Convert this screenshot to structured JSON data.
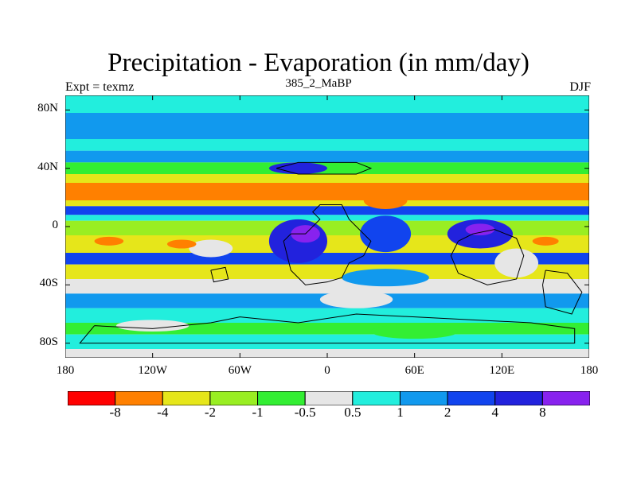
{
  "title": "Precipitation - Evaporation (in mm/day)",
  "left_label": "Expt = texmz",
  "center_label": "385_2_MaBP",
  "right_label": "DJF",
  "y_ticks": [
    {
      "label": "80N",
      "lat": 80
    },
    {
      "label": "40N",
      "lat": 40
    },
    {
      "label": "0",
      "lat": 0
    },
    {
      "label": "40S",
      "lat": -40
    },
    {
      "label": "80S",
      "lat": -80
    }
  ],
  "x_ticks": [
    {
      "label": "180",
      "lon": -180
    },
    {
      "label": "120W",
      "lon": -120
    },
    {
      "label": "60W",
      "lon": -60
    },
    {
      "label": "0",
      "lon": 0
    },
    {
      "label": "60E",
      "lon": 60
    },
    {
      "label": "120E",
      "lon": 120
    },
    {
      "label": "180",
      "lon": 180
    }
  ],
  "colorbar": {
    "colors": [
      "#ff0000",
      "#ff8000",
      "#e6e61a",
      "#99ee22",
      "#33ee33",
      "#e6e6e6",
      "#22eedd",
      "#1199ee",
      "#1144ee",
      "#2222dd",
      "#8822ee"
    ],
    "labels": [
      "-8",
      "-4",
      "-2",
      "-1",
      "-0.5",
      "0.5",
      "1",
      "2",
      "4",
      "8"
    ]
  },
  "map": {
    "lat_range": [
      -90,
      90
    ],
    "lon_range": [
      -180,
      180
    ],
    "bands": [
      {
        "lat_top": 90,
        "lat_bot": 78,
        "color": "#22eedd"
      },
      {
        "lat_top": 78,
        "lat_bot": 60,
        "color": "#1199ee"
      },
      {
        "lat_top": 60,
        "lat_bot": 52,
        "color": "#22eedd"
      },
      {
        "lat_top": 52,
        "lat_bot": 44,
        "color": "#1199ee"
      },
      {
        "lat_top": 44,
        "lat_bot": 36,
        "color": "#33ee33"
      },
      {
        "lat_top": 36,
        "lat_bot": 30,
        "color": "#e6e61a"
      },
      {
        "lat_top": 30,
        "lat_bot": 18,
        "color": "#ff8000"
      },
      {
        "lat_top": 18,
        "lat_bot": 14,
        "color": "#e6e61a"
      },
      {
        "lat_top": 14,
        "lat_bot": 8,
        "color": "#1144ee"
      },
      {
        "lat_top": 8,
        "lat_bot": 4,
        "color": "#22eedd"
      },
      {
        "lat_top": 4,
        "lat_bot": -6,
        "color": "#99ee22"
      },
      {
        "lat_top": -6,
        "lat_bot": -18,
        "color": "#e6e61a"
      },
      {
        "lat_top": -18,
        "lat_bot": -26,
        "color": "#1144ee"
      },
      {
        "lat_top": -26,
        "lat_bot": -36,
        "color": "#e6e61a"
      },
      {
        "lat_top": -36,
        "lat_bot": -46,
        "color": "#e6e6e6"
      },
      {
        "lat_top": -46,
        "lat_bot": -56,
        "color": "#1199ee"
      },
      {
        "lat_top": -56,
        "lat_bot": -66,
        "color": "#22eedd"
      },
      {
        "lat_top": -66,
        "lat_bot": -74,
        "color": "#33ee33"
      },
      {
        "lat_top": -74,
        "lat_bot": -84,
        "color": "#22eedd"
      },
      {
        "lat_top": -84,
        "lat_bot": -90,
        "color": "#e6e6e6"
      }
    ],
    "blobs": [
      {
        "lon": -20,
        "lat": 40,
        "w": 40,
        "h": 8,
        "color": "#2222dd"
      },
      {
        "lon": -80,
        "lat": -15,
        "w": 30,
        "h": 12,
        "color": "#e6e6e6"
      },
      {
        "lon": -20,
        "lat": -10,
        "w": 40,
        "h": 30,
        "color": "#2222dd"
      },
      {
        "lon": -15,
        "lat": -5,
        "w": 20,
        "h": 12,
        "color": "#8822ee"
      },
      {
        "lon": 40,
        "lat": -5,
        "w": 35,
        "h": 25,
        "color": "#1144ee"
      },
      {
        "lon": 105,
        "lat": -5,
        "w": 45,
        "h": 20,
        "color": "#2222dd"
      },
      {
        "lon": 105,
        "lat": -2,
        "w": 20,
        "h": 8,
        "color": "#8822ee"
      },
      {
        "lon": 130,
        "lat": -25,
        "w": 30,
        "h": 20,
        "color": "#e6e6e6"
      },
      {
        "lon": -100,
        "lat": -12,
        "w": 20,
        "h": 6,
        "color": "#ff8000"
      },
      {
        "lon": -150,
        "lat": -10,
        "w": 20,
        "h": 6,
        "color": "#ff8000"
      },
      {
        "lon": 150,
        "lat": -10,
        "w": 18,
        "h": 6,
        "color": "#ff8000"
      },
      {
        "lon": 40,
        "lat": -35,
        "w": 60,
        "h": 12,
        "color": "#1199ee"
      },
      {
        "lon": 20,
        "lat": -50,
        "w": 50,
        "h": 12,
        "color": "#e6e6e6"
      },
      {
        "lon": 60,
        "lat": -72,
        "w": 60,
        "h": 10,
        "color": "#33ee33"
      },
      {
        "lon": -120,
        "lat": -68,
        "w": 50,
        "h": 8,
        "color": "#e6e6e6"
      },
      {
        "lon": 40,
        "lat": 18,
        "w": 30,
        "h": 12,
        "color": "#ff8000"
      },
      {
        "lon": 0,
        "lat": 24,
        "w": 50,
        "h": 10,
        "color": "#ff8000"
      }
    ],
    "coastlines": [
      [
        [
          -25,
          -5
        ],
        [
          -15,
          -5
        ],
        [
          -5,
          5
        ],
        [
          -10,
          10
        ],
        [
          -5,
          15
        ],
        [
          10,
          15
        ],
        [
          15,
          5
        ],
        [
          20,
          0
        ],
        [
          30,
          -10
        ],
        [
          25,
          -20
        ],
        [
          15,
          -25
        ],
        [
          10,
          -35
        ],
        [
          0,
          -38
        ],
        [
          -15,
          -40
        ],
        [
          -25,
          -30
        ],
        [
          -30,
          -10
        ],
        [
          -25,
          -5
        ]
      ],
      [
        [
          -35,
          40
        ],
        [
          -20,
          44
        ],
        [
          0,
          44
        ],
        [
          20,
          44
        ],
        [
          30,
          40
        ],
        [
          20,
          36
        ],
        [
          0,
          36
        ],
        [
          -20,
          36
        ],
        [
          -35,
          40
        ]
      ],
      [
        [
          90,
          -10
        ],
        [
          100,
          -5
        ],
        [
          115,
          -2
        ],
        [
          130,
          -8
        ],
        [
          135,
          -20
        ],
        [
          130,
          -36
        ],
        [
          110,
          -40
        ],
        [
          90,
          -32
        ],
        [
          85,
          -20
        ],
        [
          90,
          -10
        ]
      ],
      [
        [
          -80,
          -30
        ],
        [
          -70,
          -28
        ],
        [
          -68,
          -36
        ],
        [
          -78,
          -38
        ],
        [
          -80,
          -30
        ]
      ],
      [
        [
          -160,
          -68
        ],
        [
          -120,
          -70
        ],
        [
          -80,
          -66
        ],
        [
          -60,
          -62
        ],
        [
          -20,
          -66
        ],
        [
          20,
          -60
        ],
        [
          60,
          -62
        ],
        [
          100,
          -64
        ],
        [
          140,
          -66
        ],
        [
          170,
          -70
        ],
        [
          170,
          -80
        ],
        [
          -170,
          -80
        ],
        [
          -160,
          -68
        ]
      ],
      [
        [
          150,
          -30
        ],
        [
          165,
          -32
        ],
        [
          175,
          -45
        ],
        [
          168,
          -60
        ],
        [
          150,
          -55
        ],
        [
          148,
          -40
        ],
        [
          150,
          -30
        ]
      ]
    ]
  }
}
